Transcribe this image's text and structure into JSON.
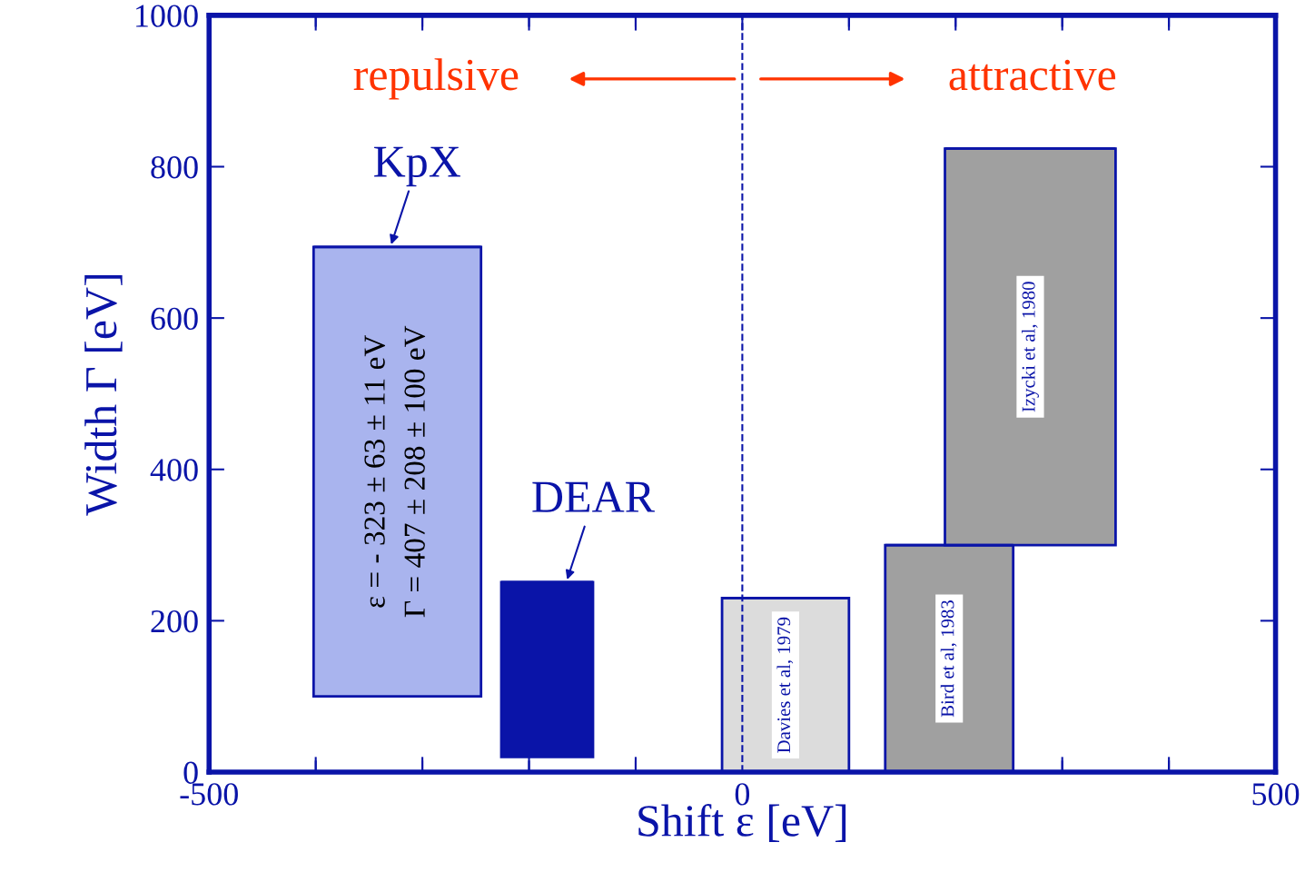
{
  "chart_data": {
    "type": "bar",
    "series": [
      {
        "name": "ε = - 323 ± 63 ± 11 eV\nΓ = 407 ± 208 ± 100 eV",
        "color": "#a9b4ee",
        "x": [
          -323.5
        ],
        "xerrors": [
          [
            -402,
            -245
          ]
        ],
        "base": [
          100
        ],
        "values": [
          594
        ]
      },
      {
        "color": "#0a14a8",
        "x": [
          -183
        ],
        "xerrors": [
          [
            -226,
            -140
          ]
        ],
        "base": [
          20
        ],
        "values": [
          231
        ]
      },
      {
        "name": "Davies et al, 1979",
        "color": "#dcdcdc",
        "x": [
          40.5
        ],
        "xerrors": [
          [
            -19,
            100
          ]
        ],
        "base": [
          0
        ],
        "values": [
          230
        ]
      },
      {
        "name": "Bird et al, 1983",
        "color": "#a0a0a0",
        "x": [
          194
        ],
        "xerrors": [
          [
            134,
            254
          ]
        ],
        "base": [
          0
        ],
        "values": [
          300
        ]
      },
      {
        "name": "Izycki et al, 1980",
        "color": "#a0a0a0",
        "x": [
          270
        ],
        "xerrors": [
          [
            190,
            350
          ]
        ],
        "base": [
          300
        ],
        "values": [
          524
        ]
      }
    ],
    "xlabel": "Shift ε [eV]",
    "ylabel": "Width Γ [eV]",
    "xlim": [
      -500,
      500
    ],
    "xticks": [
      -500,
      {
        "value": -400,
        "label": null
      },
      {
        "value": -300,
        "label": null
      },
      {
        "value": -200,
        "label": null
      },
      {
        "value": -100,
        "label": null
      },
      0,
      {
        "value": 100,
        "label": null
      },
      {
        "value": 200,
        "label": null
      },
      {
        "value": 300,
        "label": null
      },
      {
        "value": 400,
        "label": null
      },
      500
    ],
    "ylim": [
      0,
      1000
    ],
    "yticks": [
      0,
      200,
      400,
      600,
      800,
      1000
    ],
    "ref_lines": [
      {
        "axis": "x",
        "value": 0,
        "color": "#0a14a8",
        "line_style": "dashed"
      }
    ],
    "annotations": [
      "repulsive",
      "attractive",
      {
        "text": "KpX",
        "x": -330,
        "y": 694
      },
      {
        "text": "DEAR",
        "x": -165,
        "y": 251
      }
    ],
    "grid": false,
    "legend": false
  }
}
